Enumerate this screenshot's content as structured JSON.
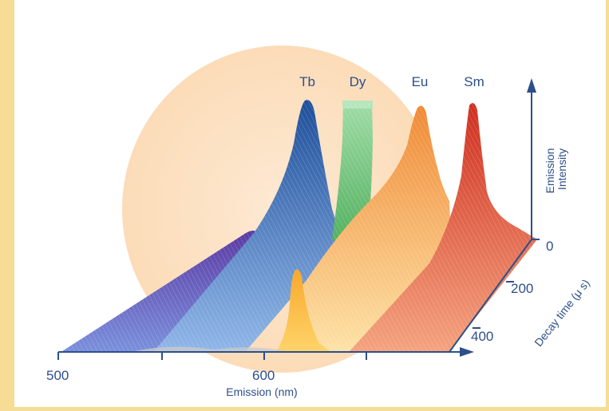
{
  "chart_data": {
    "type": "area",
    "xlabel": "Emission (nm)",
    "ylabel": "Emission Intensity",
    "zlabel": "Decay time (μ s)",
    "x_ticks": [
      500,
      600
    ],
    "y_ticks": [
      0
    ],
    "z_ticks": [
      200,
      400
    ],
    "series": [
      {
        "name": "Tb",
        "peak_nm": 545,
        "color": "#2e5fa8"
      },
      {
        "name": "Dy",
        "peak_nm": 575,
        "color": "#7cc987"
      },
      {
        "name": "Eu",
        "peak_nm": 615,
        "color": "#f08a3a"
      },
      {
        "name": "Sm",
        "peak_nm": 645,
        "color": "#d9412c"
      }
    ],
    "colors": {
      "background": "#f6dc94",
      "halo": "#fde6cc",
      "axis": "#2d4f8a"
    }
  }
}
